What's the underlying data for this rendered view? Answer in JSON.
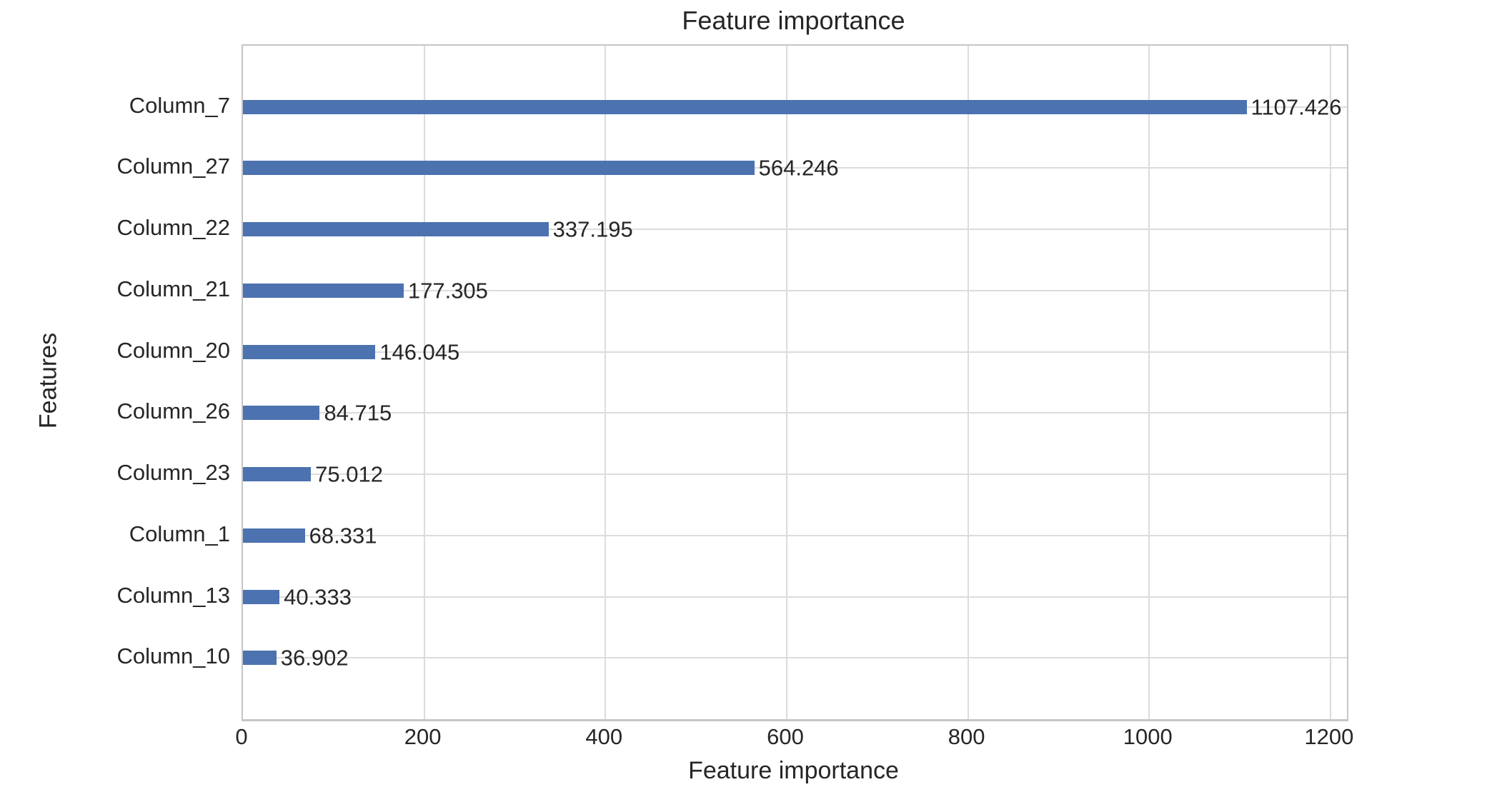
{
  "chart_data": {
    "type": "bar",
    "orientation": "horizontal",
    "title": "Feature importance",
    "xlabel": "Feature importance",
    "ylabel": "Features",
    "categories": [
      "Column_7",
      "Column_27",
      "Column_22",
      "Column_21",
      "Column_20",
      "Column_26",
      "Column_23",
      "Column_1",
      "Column_13",
      "Column_10"
    ],
    "values": [
      1107.426,
      564.246,
      337.195,
      177.305,
      146.045,
      84.715,
      75.012,
      68.331,
      40.333,
      36.902
    ],
    "value_labels": [
      "1107.426",
      "564.246",
      "337.195",
      "177.305",
      "146.045",
      "84.715",
      "75.012",
      "68.331",
      "40.333",
      "36.902"
    ],
    "xticks": [
      0,
      200,
      400,
      600,
      800,
      1000,
      1200
    ],
    "xtick_labels": [
      "0",
      "200",
      "400",
      "600",
      "800",
      "1000",
      "1200"
    ],
    "xlim": [
      0,
      1218.2
    ],
    "grid": true,
    "legend": "none",
    "colors": {
      "bar": "#4c72b0",
      "grid": "#dcdcdc",
      "spine": "#c6c6c6",
      "text": "#262626",
      "background": "#ffffff"
    }
  }
}
